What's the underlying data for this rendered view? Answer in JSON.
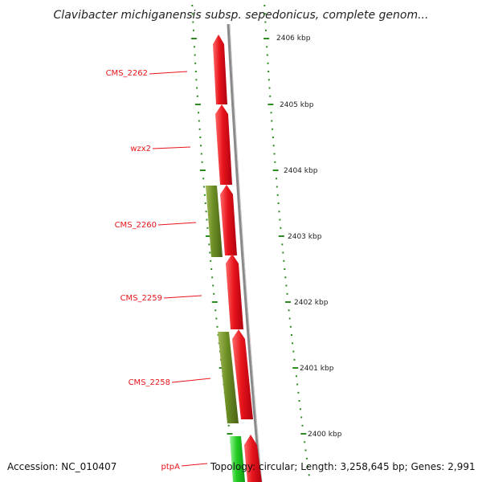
{
  "map": {
    "title": "Clavibacter michiganensis subsp. sepedonicus, complete genom...",
    "accession": "Accession: NC_010407",
    "topology": "Topology: circular; Length: 3,258,645 bp; Genes: 2,991",
    "ticks": [
      {
        "label": "2406 kbp",
        "kbp": 2406
      },
      {
        "label": "2405 kbp",
        "kbp": 2405
      },
      {
        "label": "2404 kbp",
        "kbp": 2404
      },
      {
        "label": "2403 kbp",
        "kbp": 2403
      },
      {
        "label": "2402 kbp",
        "kbp": 2402
      },
      {
        "label": "2401 kbp",
        "kbp": 2401
      },
      {
        "label": "2400 kbp",
        "kbp": 2400
      }
    ],
    "genes": [
      {
        "name": "CMS_2262",
        "strand": "forward",
        "color": "#e8141b"
      },
      {
        "name": "wzx2",
        "strand": "forward",
        "color": "#e8141b"
      },
      {
        "name": "CMS_2260",
        "strand": "reverse",
        "color": "#6b8e23"
      },
      {
        "name": "CMS_2259",
        "strand": "forward",
        "color": "#e8141b"
      },
      {
        "name": "CMS_2258",
        "strand": "reverse",
        "color": "#6b8e23"
      },
      {
        "name": "ptpA",
        "strand": "forward",
        "color": "#e8141b"
      }
    ],
    "colors": {
      "forward_gene": "#e8141b",
      "reverse_gene": "#6b8e23",
      "rna_gene": "#22cc22",
      "backbone": "#888888",
      "tick": "#2e8b22",
      "label": "#e8141b"
    }
  }
}
